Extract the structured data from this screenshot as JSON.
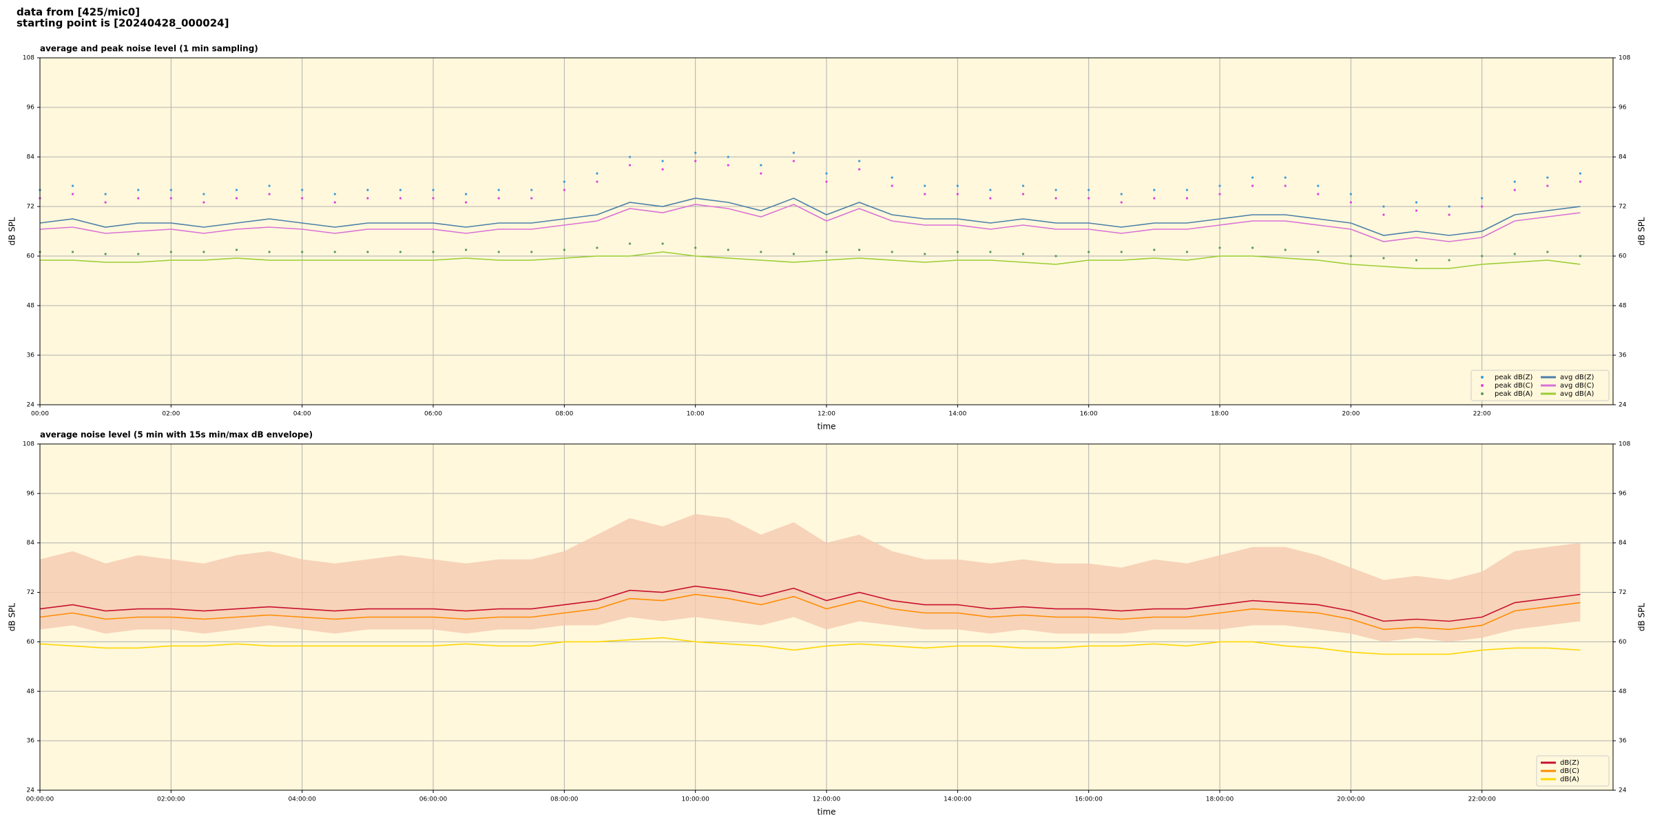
{
  "header": {
    "line1": "data from [425/mic0]",
    "line2": "starting point is [20240428_000024]"
  },
  "chart_data": [
    {
      "type": "line",
      "title": "average and peak noise level (1 min sampling)",
      "x_label": "time",
      "y_label": "dB SPL",
      "xlim": [
        0,
        24
      ],
      "ylim": [
        24,
        108
      ],
      "yticks": [
        24,
        36,
        48,
        60,
        72,
        84,
        96,
        108
      ],
      "xticks": [
        {
          "value": 0,
          "label": "00:00"
        },
        {
          "value": 2,
          "label": "02:00"
        },
        {
          "value": 4,
          "label": "04:00"
        },
        {
          "value": 6,
          "label": "06:00"
        },
        {
          "value": 8,
          "label": "08:00"
        },
        {
          "value": 10,
          "label": "10:00"
        },
        {
          "value": 12,
          "label": "12:00"
        },
        {
          "value": 14,
          "label": "14:00"
        },
        {
          "value": 16,
          "label": "16:00"
        },
        {
          "value": 18,
          "label": "18:00"
        },
        {
          "value": 20,
          "label": "20:00"
        },
        {
          "value": 22,
          "label": "22:00"
        }
      ],
      "grid": true,
      "legend": "lower right",
      "legend_columns": 2,
      "x": [
        0,
        0.5,
        1,
        1.5,
        2,
        2.5,
        3,
        3.5,
        4,
        4.5,
        5,
        5.5,
        6,
        6.5,
        7,
        7.5,
        8,
        8.5,
        9,
        9.5,
        10,
        10.5,
        11,
        11.5,
        12,
        12.5,
        13,
        13.5,
        14,
        14.5,
        15,
        15.5,
        16,
        16.5,
        17,
        17.5,
        18,
        18.5,
        19,
        19.5,
        20,
        20.5,
        21,
        21.5,
        22,
        22.5,
        23,
        23.5
      ],
      "series": [
        {
          "name": "peak dB(Z)",
          "kind": "dots",
          "color": "#3a9ad9",
          "values": [
            76,
            77,
            75,
            76,
            76,
            75,
            76,
            77,
            76,
            75,
            76,
            76,
            76,
            75,
            76,
            76,
            78,
            80,
            84,
            83,
            85,
            84,
            82,
            85,
            80,
            83,
            79,
            77,
            77,
            76,
            77,
            76,
            76,
            75,
            76,
            76,
            77,
            79,
            79,
            77,
            75,
            72,
            73,
            72,
            74,
            78,
            79,
            80
          ]
        },
        {
          "name": "peak dB(C)",
          "kind": "dots",
          "color": "#e040e0",
          "values": [
            74,
            75,
            73,
            74,
            74,
            73,
            74,
            75,
            74,
            73,
            74,
            74,
            74,
            73,
            74,
            74,
            76,
            78,
            82,
            81,
            83,
            82,
            80,
            83,
            78,
            81,
            77,
            75,
            75,
            74,
            75,
            74,
            74,
            73,
            74,
            74,
            75,
            77,
            77,
            75,
            73,
            70,
            71,
            70,
            72,
            76,
            77,
            78
          ]
        },
        {
          "name": "peak dB(A)",
          "kind": "dots",
          "color": "#5a9a5a",
          "values": [
            61,
            61,
            60.5,
            60.5,
            61,
            61,
            61.5,
            61,
            61,
            61,
            61,
            61,
            61,
            61.5,
            61,
            61,
            61.5,
            62,
            63,
            63,
            62,
            61.5,
            61,
            60.5,
            61,
            61.5,
            61,
            60.5,
            61,
            61,
            60.5,
            60,
            61,
            61,
            61.5,
            61,
            62,
            62,
            61.5,
            61,
            60,
            59.5,
            59,
            59,
            60,
            60.5,
            61,
            60
          ]
        },
        {
          "name": "avg dB(Z)",
          "kind": "line",
          "color": "#4a7fa8",
          "values": [
            68,
            69,
            67,
            68,
            68,
            67,
            68,
            69,
            68,
            67,
            68,
            68,
            68,
            67,
            68,
            68,
            69,
            70,
            73,
            72,
            74,
            73,
            71,
            74,
            70,
            73,
            70,
            69,
            69,
            68,
            69,
            68,
            68,
            67,
            68,
            68,
            69,
            70,
            70,
            69,
            68,
            65,
            66,
            65,
            66,
            70,
            71,
            72
          ]
        },
        {
          "name": "avg dB(C)",
          "kind": "line",
          "color": "#da70d6",
          "values": [
            66.5,
            67,
            65.5,
            66,
            66.5,
            65.5,
            66.5,
            67,
            66.5,
            65.5,
            66.5,
            66.5,
            66.5,
            65.5,
            66.5,
            66.5,
            67.5,
            68.5,
            71.5,
            70.5,
            72.5,
            71.5,
            69.5,
            72.5,
            68.5,
            71.5,
            68.5,
            67.5,
            67.5,
            66.5,
            67.5,
            66.5,
            66.5,
            65.5,
            66.5,
            66.5,
            67.5,
            68.5,
            68.5,
            67.5,
            66.5,
            63.5,
            64.5,
            63.5,
            64.5,
            68.5,
            69.5,
            70.5
          ]
        },
        {
          "name": "avg dB(A)",
          "kind": "line",
          "color": "#9acd32",
          "values": [
            59,
            59,
            58.5,
            58.5,
            59,
            59,
            59.5,
            59,
            59,
            59,
            59,
            59,
            59,
            59.5,
            59,
            59,
            59.5,
            60,
            60,
            61,
            60,
            59.5,
            59,
            58.5,
            59,
            59.5,
            59,
            58.5,
            59,
            59,
            58.5,
            58,
            59,
            59,
            59.5,
            59,
            60,
            60,
            59.5,
            59,
            58,
            57.5,
            57,
            57,
            58,
            58.5,
            59,
            58
          ]
        }
      ]
    },
    {
      "type": "line",
      "title": "average noise level (5 min with 15s min/max dB envelope)",
      "x_label": "time",
      "y_label": "dB SPL",
      "xlim": [
        0,
        24
      ],
      "ylim": [
        24,
        108
      ],
      "yticks": [
        24,
        36,
        48,
        60,
        72,
        84,
        96,
        108
      ],
      "xticks": [
        {
          "value": 0,
          "label": "00:00:00"
        },
        {
          "value": 2,
          "label": "02:00:00"
        },
        {
          "value": 4,
          "label": "04:00:00"
        },
        {
          "value": 6,
          "label": "06:00:00"
        },
        {
          "value": 8,
          "label": "08:00:00"
        },
        {
          "value": 10,
          "label": "10:00:00"
        },
        {
          "value": 12,
          "label": "12:00:00"
        },
        {
          "value": 14,
          "label": "14:00:00"
        },
        {
          "value": 16,
          "label": "16:00:00"
        },
        {
          "value": 18,
          "label": "18:00:00"
        },
        {
          "value": 20,
          "label": "20:00:00"
        },
        {
          "value": 22,
          "label": "22:00:00"
        }
      ],
      "grid": true,
      "legend": "lower right",
      "legend_columns": 1,
      "x": [
        0,
        0.5,
        1,
        1.5,
        2,
        2.5,
        3,
        3.5,
        4,
        4.5,
        5,
        5.5,
        6,
        6.5,
        7,
        7.5,
        8,
        8.5,
        9,
        9.5,
        10,
        10.5,
        11,
        11.5,
        12,
        12.5,
        13,
        13.5,
        14,
        14.5,
        15,
        15.5,
        16,
        16.5,
        17,
        17.5,
        18,
        18.5,
        19,
        19.5,
        20,
        20.5,
        21,
        21.5,
        22,
        22.5,
        23,
        23.5
      ],
      "envelope": {
        "color": "#f5c9b0",
        "low": [
          63,
          64,
          62,
          63,
          63,
          62,
          63,
          64,
          63,
          62,
          63,
          63,
          63,
          62,
          63,
          63,
          64,
          64,
          66,
          65,
          66,
          65,
          64,
          66,
          63,
          65,
          64,
          63,
          63,
          62,
          63,
          62,
          62,
          62,
          63,
          63,
          63,
          64,
          64,
          63,
          62,
          60,
          61,
          60,
          61,
          63,
          64,
          65
        ],
        "high": [
          80,
          82,
          79,
          81,
          80,
          79,
          81,
          82,
          80,
          79,
          80,
          81,
          80,
          79,
          80,
          80,
          82,
          86,
          90,
          88,
          91,
          90,
          86,
          89,
          84,
          86,
          82,
          80,
          80,
          79,
          80,
          79,
          79,
          78,
          80,
          79,
          81,
          83,
          83,
          81,
          78,
          75,
          76,
          75,
          77,
          82,
          83,
          84
        ]
      },
      "series": [
        {
          "name": "dB(Z)",
          "kind": "line",
          "color": "#c8102e",
          "values": [
            68,
            69,
            67.5,
            68,
            68,
            67.5,
            68,
            68.5,
            68,
            67.5,
            68,
            68,
            68,
            67.5,
            68,
            68,
            69,
            70,
            72.5,
            72,
            73.5,
            72.5,
            71,
            73,
            70,
            72,
            70,
            69,
            69,
            68,
            68.5,
            68,
            68,
            67.5,
            68,
            68,
            69,
            70,
            69.5,
            69,
            67.5,
            65,
            65.5,
            65,
            66,
            69.5,
            70.5,
            71.5
          ]
        },
        {
          "name": "dB(C)",
          "kind": "line",
          "color": "#ff8c00",
          "values": [
            66,
            67,
            65.5,
            66,
            66,
            65.5,
            66,
            66.5,
            66,
            65.5,
            66,
            66,
            66,
            65.5,
            66,
            66,
            67,
            68,
            70.5,
            70,
            71.5,
            70.5,
            69,
            71,
            68,
            70,
            68,
            67,
            67,
            66,
            66.5,
            66,
            66,
            65.5,
            66,
            66,
            67,
            68,
            67.5,
            67,
            65.5,
            63,
            63.5,
            63,
            64,
            67.5,
            68.5,
            69.5
          ]
        },
        {
          "name": "dB(A)",
          "kind": "line",
          "color": "#ffd700",
          "values": [
            59.5,
            59,
            58.5,
            58.5,
            59,
            59,
            59.5,
            59,
            59,
            59,
            59,
            59,
            59,
            59.5,
            59,
            59,
            60,
            60,
            60.5,
            61,
            60,
            59.5,
            59,
            58,
            59,
            59.5,
            59,
            58.5,
            59,
            59,
            58.5,
            58.5,
            59,
            59,
            59.5,
            59,
            60,
            60,
            59,
            58.5,
            57.5,
            57,
            57,
            57,
            58,
            58.5,
            58.5,
            58
          ]
        }
      ]
    }
  ]
}
